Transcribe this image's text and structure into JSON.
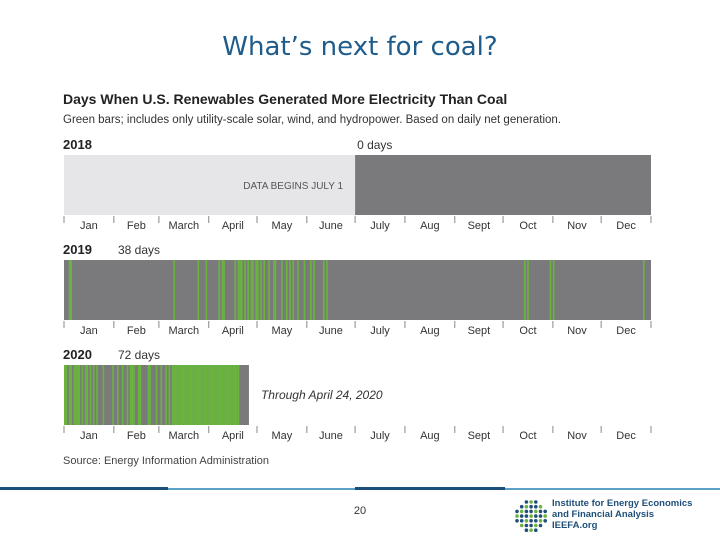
{
  "slide": {
    "title": "What’s next for coal?",
    "page_number": "20",
    "logo_lines": [
      "Institute for Energy Economics",
      "and Financial Analysis",
      "IEEFA.org"
    ]
  },
  "colors": {
    "title": "#1f5c8b",
    "coal_bar": "#7a7a7c",
    "renewable_bar": "#6ab33f",
    "no_data": "#e6e6e8"
  },
  "chart_data": {
    "type": "bar",
    "title": "Days When U.S. Renewables Generated More Electricity Than Coal",
    "subtitle": "Green bars; includes only utility-scale solar, wind, and hydropower. Based on daily net generation.",
    "source": "Source: Energy Information Administration",
    "months": [
      "Jan",
      "Feb",
      "March",
      "April",
      "May",
      "June",
      "July",
      "Aug",
      "Sept",
      "Oct",
      "Nov",
      "Dec"
    ],
    "panels": [
      {
        "year": "2018",
        "count_label": "0 days",
        "data_start_day": 182,
        "data_end_day": 365,
        "no_data_label": "DATA BEGINS JULY 1",
        "green_days": []
      },
      {
        "year": "2019",
        "count_label": "38 days",
        "data_start_day": 1,
        "data_end_day": 365,
        "green_days": [
          4,
          5,
          69,
          84,
          89,
          97,
          99,
          100,
          107,
          109,
          110,
          111,
          113,
          115,
          117,
          118,
          120,
          121,
          123,
          125,
          128,
          131,
          132,
          136,
          139,
          141,
          143,
          146,
          150,
          154,
          156,
          162,
          164,
          287,
          289,
          303,
          305,
          361
        ]
      },
      {
        "year": "2020",
        "count_label": "72 days",
        "data_start_day": 1,
        "data_end_day": 115,
        "through_label": "Through April 24, 2020",
        "green_days": [
          1,
          2,
          4,
          5,
          7,
          8,
          9,
          10,
          12,
          14,
          15,
          17,
          19,
          21,
          25,
          31,
          34,
          37,
          40,
          42,
          43,
          44,
          47,
          48,
          53,
          54,
          58,
          61,
          64,
          66,
          68,
          69,
          70,
          71,
          72,
          73,
          74,
          75,
          76,
          77,
          78,
          79,
          80,
          81,
          82,
          83,
          84,
          85,
          86,
          87,
          88,
          89,
          90,
          91,
          92,
          93,
          94,
          95,
          96,
          97,
          98,
          99,
          100,
          101,
          102,
          103,
          104,
          105,
          106,
          107,
          108,
          109
        ]
      }
    ]
  }
}
